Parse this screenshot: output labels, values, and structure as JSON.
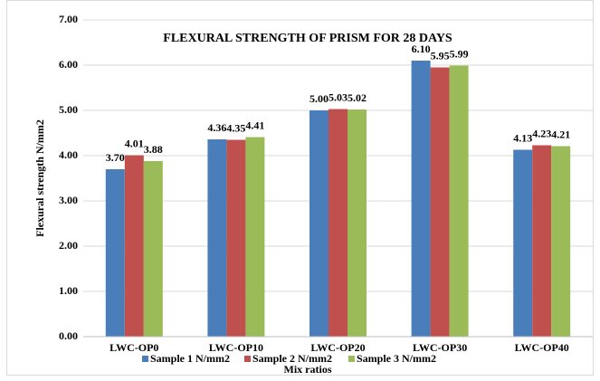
{
  "chart_data": {
    "type": "bar",
    "title": "FLEXURAL STRENGTH OF PRISM FOR 28 DAYS",
    "x_label": "Mix ratios",
    "y_label": "Flexural strength N/mm2",
    "categories": [
      "LWC-OP0",
      "LWC-OP10",
      "LWC-OP20",
      "LWC-OP30",
      "LWC-OP40"
    ],
    "series": [
      {
        "name": "Sample 1 N/mm2",
        "color": "#4a7ebb",
        "values": [
          3.7,
          4.36,
          5.0,
          6.1,
          4.13
        ],
        "value_labels": [
          "3.70",
          "4.36",
          "5.00",
          "6.10",
          "4.13"
        ]
      },
      {
        "name": "Sample 2 N/mm2",
        "color": "#c0504d",
        "values": [
          4.01,
          4.35,
          5.03,
          5.95,
          4.23
        ],
        "value_labels": [
          "4.01",
          "4.35",
          "5.03",
          "5.95",
          "4.23"
        ]
      },
      {
        "name": "Sample 3 N/mm2",
        "color": "#9bbb59",
        "values": [
          3.88,
          4.41,
          5.02,
          5.99,
          4.21
        ],
        "value_labels": [
          "3.88",
          "4.41",
          "5.02",
          "5.99",
          "4.21"
        ]
      }
    ],
    "ylim": [
      0,
      7
    ],
    "yticks": [
      {
        "value": 0,
        "label": "0.00"
      },
      {
        "value": 1,
        "label": "1.00"
      },
      {
        "value": 2,
        "label": "2.00"
      },
      {
        "value": 3,
        "label": "3.00"
      },
      {
        "value": 4,
        "label": "4.00"
      },
      {
        "value": 5,
        "label": "5.00"
      },
      {
        "value": 6,
        "label": "6.00"
      },
      {
        "value": 7,
        "label": "7.00"
      }
    ],
    "grid": true,
    "legend": "bottom"
  }
}
